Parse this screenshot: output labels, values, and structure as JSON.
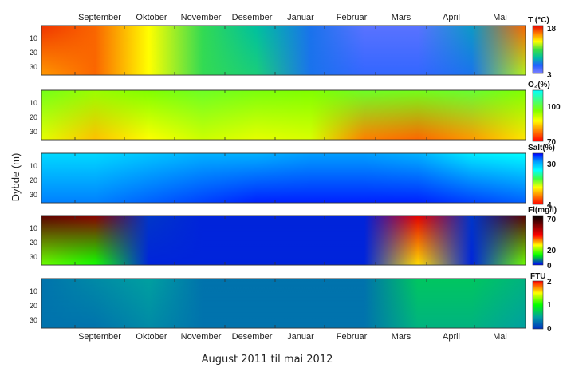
{
  "chart_data": {
    "type": "heatmap",
    "xlabel": "August 2011 til mai 2012",
    "ylabel": "Dybde (m)",
    "months": [
      "September",
      "Oktober",
      "November",
      "Desember",
      "Januar",
      "Februar",
      "Mars",
      "April",
      "Mai"
    ],
    "depth_ticks": [
      10,
      20,
      30
    ],
    "depth_range": [
      0,
      36
    ],
    "panels": [
      {
        "name": "temperature",
        "colorbar_label": "T (°C)",
        "cb_min": 3,
        "cb_max": 18,
        "cb_ticks": [
          "18",
          "3"
        ],
        "cb_colors": [
          "#e60000",
          "#ff8000",
          "#ffff00",
          "#40e040",
          "#00c0a0",
          "#2060ff",
          "#8080ff"
        ],
        "monthly_surface": [
          17,
          16,
          13,
          10,
          8,
          6,
          4,
          4,
          7,
          16
        ],
        "monthly_bottom": [
          15,
          16,
          13,
          10,
          9,
          6,
          5,
          5,
          6,
          12
        ]
      },
      {
        "name": "oxygen",
        "colorbar_label": "O₂(%)",
        "cb_min": 70,
        "cb_max": 120,
        "cb_ticks": [
          "100",
          "70"
        ],
        "cb_colors": [
          "#00ffff",
          "#40ff80",
          "#80ff00",
          "#ffff00",
          "#ff8000",
          "#ff0000"
        ],
        "monthly_surface": [
          102,
          98,
          100,
          103,
          101,
          100,
          103,
          102,
          104,
          100
        ],
        "monthly_bottom": [
          92,
          85,
          90,
          94,
          92,
          93,
          80,
          78,
          82,
          88
        ]
      },
      {
        "name": "salinity",
        "colorbar_label": "Salt(%)",
        "cb_min": 4,
        "cb_max": 34,
        "cb_ticks": [
          "30",
          "4"
        ],
        "cb_colors": [
          "#0000ff",
          "#00a0ff",
          "#00ffff",
          "#40ff40",
          "#ffff00",
          "#ff8000",
          "#ff0000"
        ],
        "monthly_surface": [
          26,
          26,
          27,
          28,
          28,
          29,
          29,
          28,
          25,
          24
        ],
        "monthly_bottom": [
          30,
          30,
          31,
          32,
          33,
          33,
          33,
          33,
          32,
          31
        ]
      },
      {
        "name": "fluorescence",
        "colorbar_label": "Fl(mg/l)",
        "cb_min": 0,
        "cb_max": 70,
        "cb_ticks": [
          "70",
          "20",
          "0"
        ],
        "cb_colors": [
          "#000000",
          "#800000",
          "#ff0000",
          "#ffff00",
          "#00ff00",
          "#0000ff"
        ],
        "monthly_surface": [
          60,
          55,
          3,
          2,
          2,
          2,
          2,
          45,
          3,
          60
        ],
        "monthly_bottom": [
          20,
          15,
          2,
          2,
          2,
          2,
          2,
          30,
          2,
          20
        ]
      },
      {
        "name": "turbidity",
        "colorbar_label": "FTU",
        "cb_min": 0,
        "cb_max": 2,
        "cb_ticks": [
          "2",
          "1",
          "0"
        ],
        "cb_colors": [
          "#ff0000",
          "#ffff00",
          "#00ff00",
          "#00a0a0",
          "#0030c0"
        ],
        "monthly_surface": [
          0.3,
          0.4,
          0.5,
          0.3,
          0.3,
          0.3,
          0.3,
          0.7,
          0.7,
          0.6
        ],
        "monthly_bottom": [
          0.3,
          0.3,
          0.4,
          0.3,
          0.3,
          0.3,
          0.3,
          0.6,
          0.6,
          0.5
        ]
      }
    ]
  }
}
